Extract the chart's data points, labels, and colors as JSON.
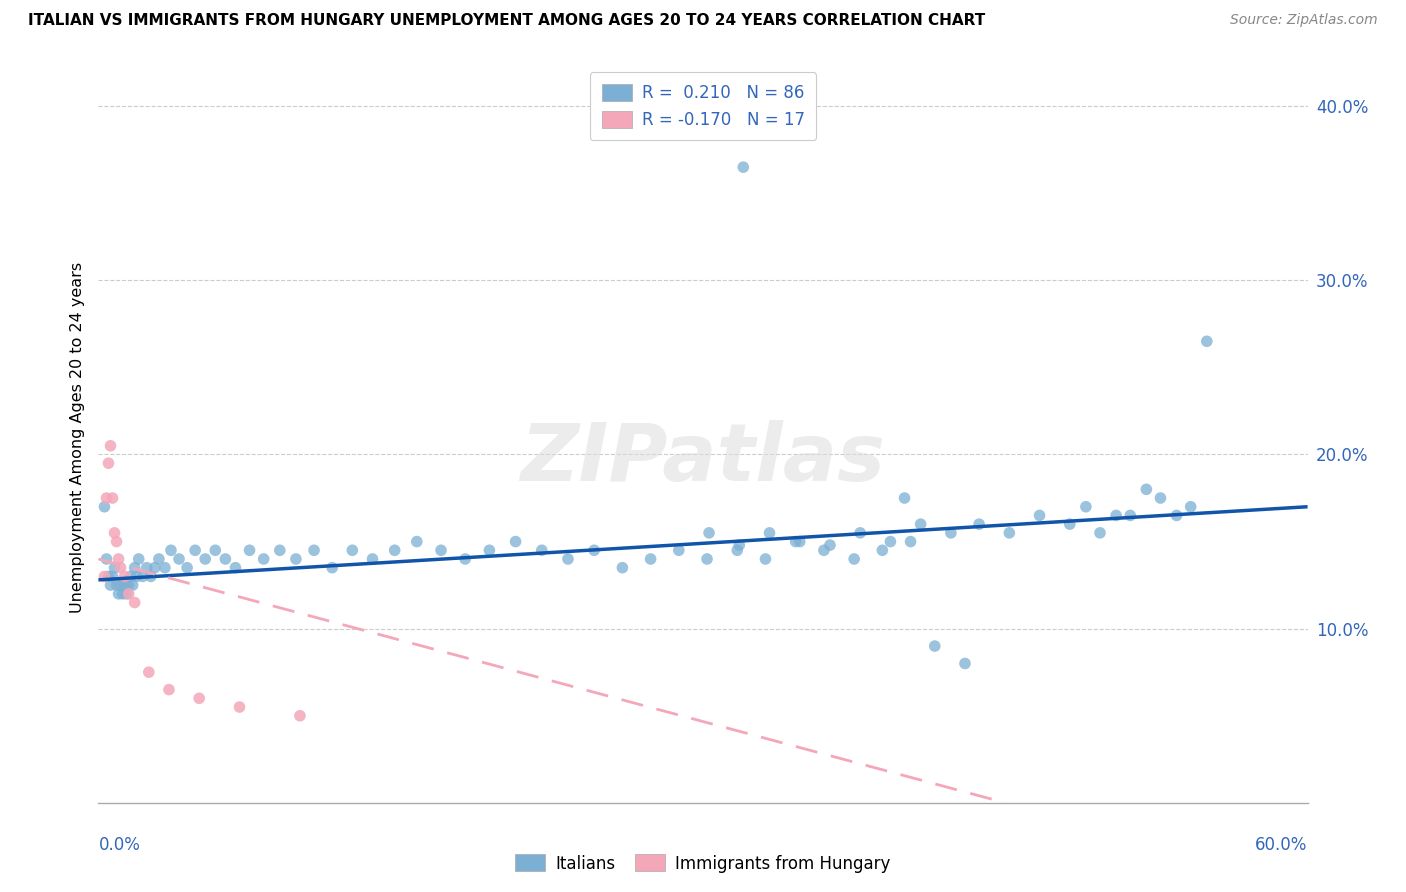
{
  "title": "ITALIAN VS IMMIGRANTS FROM HUNGARY UNEMPLOYMENT AMONG AGES 20 TO 24 YEARS CORRELATION CHART",
  "source": "Source: ZipAtlas.com",
  "ylabel": "Unemployment Among Ages 20 to 24 years",
  "xlim": [
    0.0,
    0.6
  ],
  "ylim": [
    0.0,
    0.42
  ],
  "yticks": [
    0.1,
    0.2,
    0.3,
    0.4
  ],
  "ytick_labels": [
    "10.0%",
    "20.0%",
    "30.0%",
    "40.0%"
  ],
  "blue_color": "#7BAFD4",
  "pink_color": "#F4A7B9",
  "trendline_blue_color": "#1155AA",
  "trendline_pink_color": "#F4A7B9",
  "watermark": "ZIPatlas",
  "italian_x": [
    0.003,
    0.004,
    0.005,
    0.006,
    0.007,
    0.008,
    0.009,
    0.01,
    0.011,
    0.012,
    0.013,
    0.014,
    0.015,
    0.016,
    0.017,
    0.018,
    0.019,
    0.02,
    0.022,
    0.024,
    0.026,
    0.028,
    0.03,
    0.033,
    0.036,
    0.04,
    0.044,
    0.048,
    0.053,
    0.058,
    0.063,
    0.068,
    0.075,
    0.082,
    0.09,
    0.098,
    0.107,
    0.116,
    0.126,
    0.136,
    0.147,
    0.158,
    0.17,
    0.182,
    0.194,
    0.207,
    0.22,
    0.233,
    0.246,
    0.26,
    0.274,
    0.288,
    0.302,
    0.317,
    0.331,
    0.346,
    0.36,
    0.375,
    0.389,
    0.403,
    0.303,
    0.318,
    0.333,
    0.348,
    0.363,
    0.378,
    0.393,
    0.408,
    0.423,
    0.437,
    0.452,
    0.467,
    0.482,
    0.497,
    0.512,
    0.527,
    0.542,
    0.49,
    0.505,
    0.52,
    0.535,
    0.55,
    0.4,
    0.415,
    0.43,
    0.32
  ],
  "italian_y": [
    0.17,
    0.14,
    0.13,
    0.125,
    0.13,
    0.135,
    0.125,
    0.12,
    0.125,
    0.12,
    0.125,
    0.12,
    0.125,
    0.13,
    0.125,
    0.135,
    0.13,
    0.14,
    0.13,
    0.135,
    0.13,
    0.135,
    0.14,
    0.135,
    0.145,
    0.14,
    0.135,
    0.145,
    0.14,
    0.145,
    0.14,
    0.135,
    0.145,
    0.14,
    0.145,
    0.14,
    0.145,
    0.135,
    0.145,
    0.14,
    0.145,
    0.15,
    0.145,
    0.14,
    0.145,
    0.15,
    0.145,
    0.14,
    0.145,
    0.135,
    0.14,
    0.145,
    0.14,
    0.145,
    0.14,
    0.15,
    0.145,
    0.14,
    0.145,
    0.15,
    0.155,
    0.148,
    0.155,
    0.15,
    0.148,
    0.155,
    0.15,
    0.16,
    0.155,
    0.16,
    0.155,
    0.165,
    0.16,
    0.155,
    0.165,
    0.175,
    0.17,
    0.17,
    0.165,
    0.18,
    0.165,
    0.265,
    0.175,
    0.09,
    0.08,
    0.365
  ],
  "hungary_x": [
    0.003,
    0.004,
    0.005,
    0.006,
    0.007,
    0.008,
    0.009,
    0.01,
    0.011,
    0.013,
    0.015,
    0.018,
    0.025,
    0.035,
    0.05,
    0.07,
    0.1
  ],
  "hungary_y": [
    0.13,
    0.175,
    0.195,
    0.205,
    0.175,
    0.155,
    0.15,
    0.14,
    0.135,
    0.13,
    0.12,
    0.115,
    0.075,
    0.065,
    0.06,
    0.055,
    0.05
  ],
  "blue_trendline_x": [
    0.0,
    0.6
  ],
  "blue_trendline_y": [
    0.128,
    0.17
  ],
  "pink_trendline_x": [
    0.0,
    0.45
  ],
  "pink_trendline_y": [
    0.14,
    0.0
  ]
}
